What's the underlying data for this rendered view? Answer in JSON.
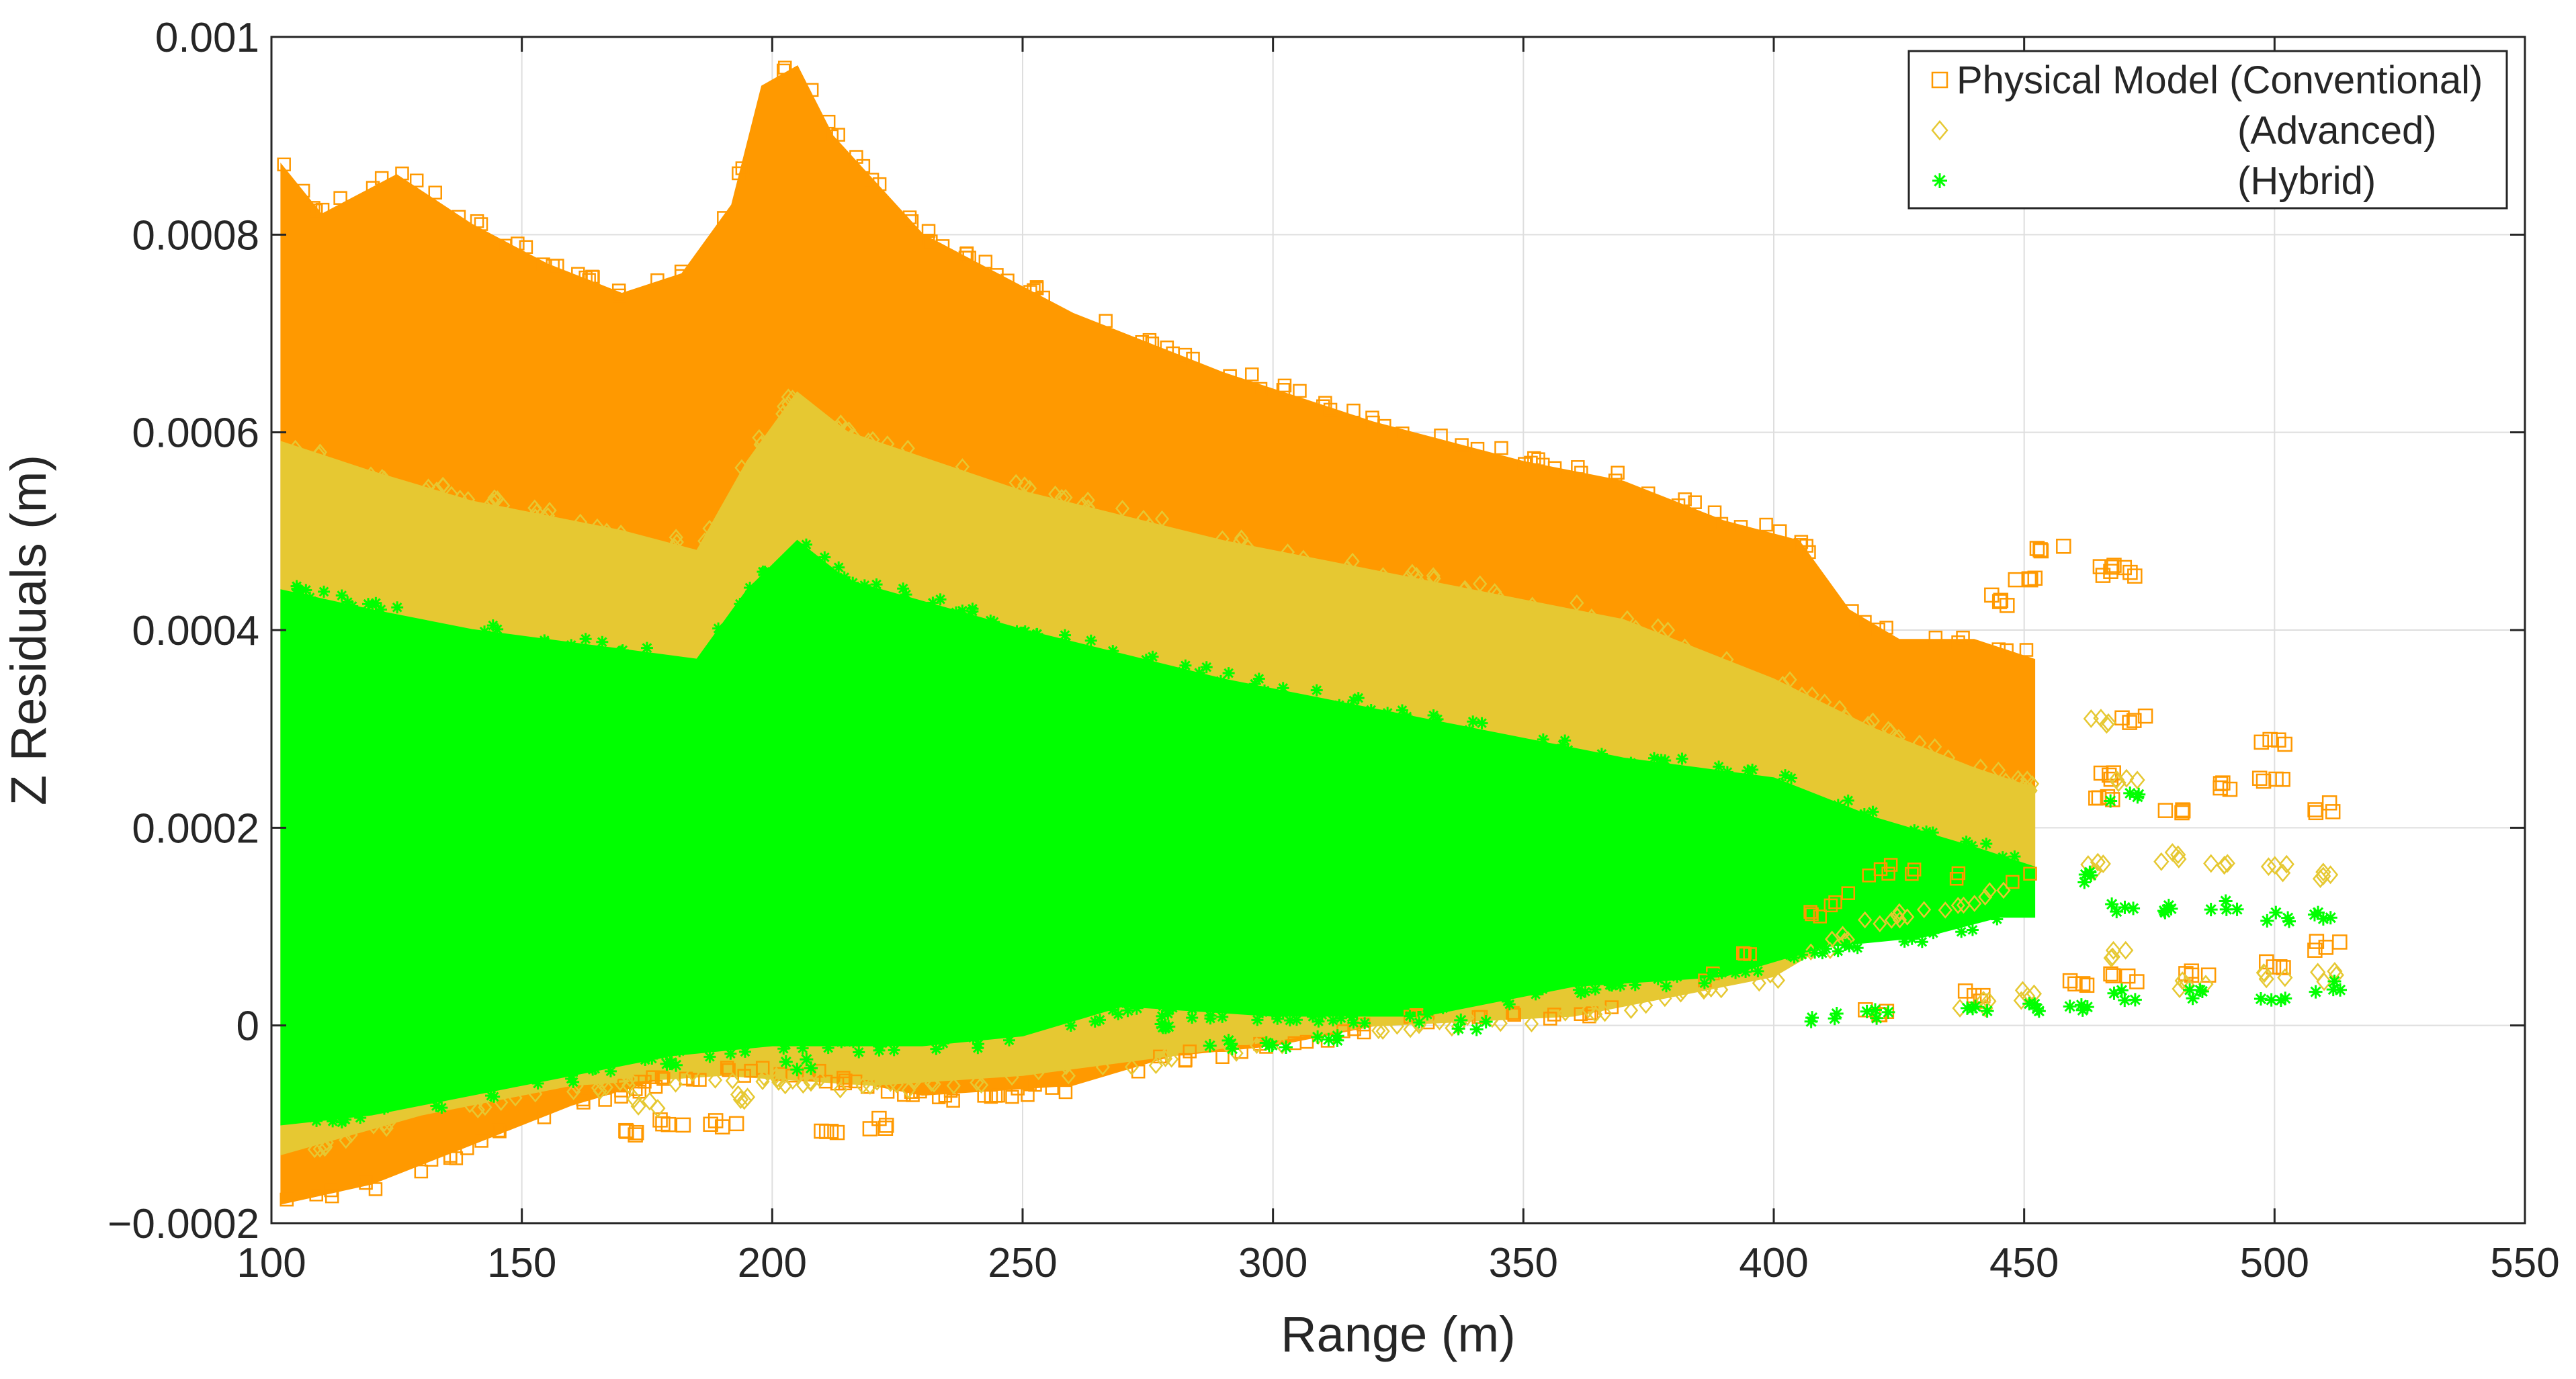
{
  "chart_data": {
    "type": "scatter",
    "title": "",
    "xlabel": "Range (m)",
    "ylabel": "Z Residuals (m)",
    "xlim": [
      100,
      550
    ],
    "ylim": [
      -0.0002,
      0.001
    ],
    "xticks": [
      100,
      150,
      200,
      250,
      300,
      350,
      400,
      450,
      500,
      550
    ],
    "yticks": [
      -0.0002,
      0,
      0.0002,
      0.0004,
      0.0006,
      0.0008,
      0.001
    ],
    "xtick_labels": [
      "100",
      "150",
      "200",
      "250",
      "300",
      "350",
      "400",
      "450",
      "500",
      "550"
    ],
    "ytick_labels": [
      "−0.0002",
      "0",
      "0.0002",
      "0.0004",
      "0.0006",
      "0.0008",
      "0.001"
    ],
    "grid": true,
    "legend_position": "top-right",
    "legend": [
      "Physical Model (Conventional)",
      "(Advanced)",
      "(Hybrid)"
    ],
    "series": [
      {
        "name": "Physical Model (Conventional)",
        "marker": "square",
        "color": "#FF9900",
        "upper": [
          [
            102,
            0.00087
          ],
          [
            110,
            0.00082
          ],
          [
            125,
            0.00086
          ],
          [
            140,
            0.00081
          ],
          [
            155,
            0.00077
          ],
          [
            170,
            0.00074
          ],
          [
            182,
            0.00076
          ],
          [
            192,
            0.00083
          ],
          [
            198,
            0.00095
          ],
          [
            205,
            0.00097
          ],
          [
            212,
            0.0009
          ],
          [
            230,
            0.0008
          ],
          [
            260,
            0.00072
          ],
          [
            290,
            0.00066
          ],
          [
            320,
            0.00061
          ],
          [
            350,
            0.00057
          ],
          [
            370,
            0.00055
          ],
          [
            390,
            0.00051
          ],
          [
            405,
            0.00049
          ],
          [
            415,
            0.00042
          ],
          [
            425,
            0.00039
          ],
          [
            440,
            0.00039
          ],
          [
            452,
            0.00037
          ]
        ],
        "lower": [
          [
            102,
            -0.00018
          ],
          [
            120,
            -0.00016
          ],
          [
            140,
            -0.00012
          ],
          [
            160,
            -8e-05
          ],
          [
            180,
            -5e-05
          ],
          [
            200,
            -4e-05
          ],
          [
            230,
            -7e-05
          ],
          [
            260,
            -6e-05
          ],
          [
            280,
            -3e-05
          ],
          [
            300,
            -2e-05
          ],
          [
            330,
            1e-05
          ],
          [
            360,
            1e-05
          ],
          [
            390,
            6e-05
          ],
          [
            410,
            0.00012
          ],
          [
            420,
            0.00016
          ],
          [
            430,
            0.00016
          ],
          [
            445,
            0.00014
          ],
          [
            452,
            0.00016
          ]
        ],
        "outliers": [
          [
            465,
            0.00046
          ],
          [
            470,
            0.00046
          ],
          [
            455,
            0.00048
          ],
          [
            450,
            0.00045
          ],
          [
            445,
            0.00043
          ],
          [
            472,
            0.00031
          ],
          [
            480,
            0.00022
          ],
          [
            490,
            0.00024
          ],
          [
            500,
            0.00025
          ],
          [
            510,
            0.00022
          ],
          [
            465,
            0.00025
          ],
          [
            465,
            0.00023
          ],
          [
            500,
            0.00029
          ],
          [
            180,
            -0.0001
          ],
          [
            190,
            -0.0001
          ],
          [
            170,
            -0.00011
          ],
          [
            210,
            -0.00011
          ],
          [
            220,
            -0.0001
          ],
          [
            420,
            1e-05
          ],
          [
            440,
            3e-05
          ],
          [
            460,
            4e-05
          ],
          [
            470,
            5e-05
          ],
          [
            484,
            5e-05
          ],
          [
            500,
            6e-05
          ],
          [
            511,
            8e-05
          ]
        ]
      },
      {
        "name": "(Advanced)",
        "marker": "diamond",
        "color": "#E6C832",
        "upper": [
          [
            102,
            0.00059
          ],
          [
            120,
            0.00056
          ],
          [
            140,
            0.00053
          ],
          [
            170,
            0.0005
          ],
          [
            185,
            0.00048
          ],
          [
            195,
            0.00057
          ],
          [
            205,
            0.00064
          ],
          [
            215,
            0.0006
          ],
          [
            250,
            0.00054
          ],
          [
            290,
            0.00049
          ],
          [
            330,
            0.00045
          ],
          [
            370,
            0.00041
          ],
          [
            400,
            0.00035
          ],
          [
            420,
            0.0003
          ],
          [
            440,
            0.00026
          ],
          [
            452,
            0.00024
          ]
        ],
        "lower": [
          [
            102,
            -0.00013
          ],
          [
            130,
            -9e-05
          ],
          [
            160,
            -6e-05
          ],
          [
            190,
            -5e-05
          ],
          [
            220,
            -6e-05
          ],
          [
            250,
            -5e-05
          ],
          [
            280,
            -3e-05
          ],
          [
            320,
            0
          ],
          [
            360,
            1e-05
          ],
          [
            400,
            5e-05
          ],
          [
            420,
            0.00011
          ],
          [
            440,
            0.00013
          ],
          [
            452,
            0.00015
          ]
        ],
        "outliers": [
          [
            465,
            0.00031
          ],
          [
            470,
            0.00025
          ],
          [
            480,
            0.00017
          ],
          [
            490,
            0.00016
          ],
          [
            500,
            0.00016
          ],
          [
            510,
            0.00015
          ],
          [
            465,
            0.00016
          ],
          [
            470,
            7e-05
          ],
          [
            484,
            4e-05
          ],
          [
            500,
            5e-05
          ],
          [
            511,
            5e-05
          ],
          [
            450,
            3e-05
          ],
          [
            440,
            2e-05
          ],
          [
            175,
            -8e-05
          ],
          [
            195,
            -7e-05
          ]
        ]
      },
      {
        "name": "(Hybrid)",
        "marker": "asterisk",
        "color": "#00FF00",
        "upper": [
          [
            102,
            0.00044
          ],
          [
            120,
            0.00042
          ],
          [
            140,
            0.0004
          ],
          [
            170,
            0.00038
          ],
          [
            185,
            0.00037
          ],
          [
            195,
            0.00044
          ],
          [
            205,
            0.00049
          ],
          [
            215,
            0.00045
          ],
          [
            250,
            0.0004
          ],
          [
            290,
            0.00035
          ],
          [
            330,
            0.00031
          ],
          [
            370,
            0.00027
          ],
          [
            400,
            0.00025
          ],
          [
            420,
            0.00021
          ],
          [
            440,
            0.00018
          ],
          [
            452,
            0.00016
          ]
        ],
        "lower": [
          [
            102,
            -0.0001
          ],
          [
            120,
            -9e-05
          ],
          [
            150,
            -6e-05
          ],
          [
            180,
            -3e-05
          ],
          [
            200,
            -2e-05
          ],
          [
            230,
            -2e-05
          ],
          [
            250,
            -1e-05
          ],
          [
            270,
            2e-05
          ],
          [
            300,
            1e-05
          ],
          [
            330,
            1e-05
          ],
          [
            360,
            4e-05
          ],
          [
            390,
            5e-05
          ],
          [
            410,
            8e-05
          ],
          [
            430,
            9e-05
          ],
          [
            445,
            0.00011
          ],
          [
            452,
            0.00011
          ]
        ],
        "outliers": [
          [
            470,
            0.00023
          ],
          [
            465,
            0.00015
          ],
          [
            470,
            0.00012
          ],
          [
            480,
            0.00012
          ],
          [
            490,
            0.00012
          ],
          [
            500,
            0.00011
          ],
          [
            510,
            0.00011
          ],
          [
            511,
            4e-05
          ],
          [
            500,
            3e-05
          ],
          [
            484,
            3e-05
          ],
          [
            470,
            3e-05
          ],
          [
            460,
            2e-05
          ],
          [
            450,
            2e-05
          ],
          [
            440,
            2e-05
          ],
          [
            420,
            1e-05
          ],
          [
            410,
            1e-05
          ],
          [
            270,
            2e-05
          ],
          [
            280,
            0
          ],
          [
            290,
            -2e-05
          ],
          [
            300,
            -2e-05
          ],
          [
            310,
            -1e-05
          ],
          [
            340,
            0
          ],
          [
            205,
            -4e-05
          ],
          [
            180,
            -4e-05
          ]
        ]
      }
    ]
  }
}
